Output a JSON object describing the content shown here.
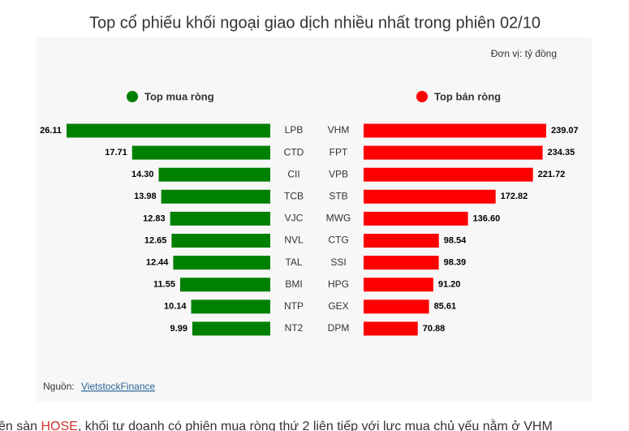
{
  "title": "Top cổ phiếu khối ngoại giao dịch nhiều nhất trong phiên 02/10",
  "unit": "Đơn vị: tỷ đồng",
  "source": {
    "label": "Nguồn:",
    "link": "VietstockFinance"
  },
  "footer": [
    "ên sàn ",
    "HOSE",
    ", khối tự doanh có phiên mua ròng thứ 2 liên tiếp với lực mua chủ yếu nằm ở VHM"
  ],
  "chart_data": [
    {
      "type": "bar",
      "categories": [
        "LPB",
        "CTD",
        "CII",
        "TCB",
        "VJC",
        "NVL",
        "TAL",
        "BMI",
        "NTP",
        "NT2"
      ],
      "series": [
        {
          "name": "Top mua ròng",
          "color": "#008000",
          "values": [
            26.11,
            17.71,
            14.3,
            13.98,
            12.83,
            12.65,
            12.44,
            11.55,
            10.14,
            9.99
          ],
          "value_labels": [
            "26.11",
            "17.71",
            "14.30",
            "13.98",
            "12.83",
            "12.65",
            "12.44",
            "11.55",
            "10.14",
            "9.99"
          ]
        }
      ]
    },
    {
      "type": "bar",
      "categories": [
        "VHM",
        "FPT",
        "VPB",
        "STB",
        "MWG",
        "CTG",
        "SSI",
        "HPG",
        "GEX",
        "DPM"
      ],
      "series": [
        {
          "name": "Top bán ròng",
          "color": "#ff0000",
          "values": [
            239.07,
            234.35,
            221.72,
            172.82,
            136.6,
            98.54,
            98.39,
            91.2,
            85.61,
            70.88
          ],
          "value_labels": [
            "239.07",
            "234.35",
            "221.72",
            "172.82",
            "136.60",
            "98.54",
            "98.39",
            "91.20",
            "85.61",
            "70.88"
          ]
        }
      ]
    }
  ]
}
